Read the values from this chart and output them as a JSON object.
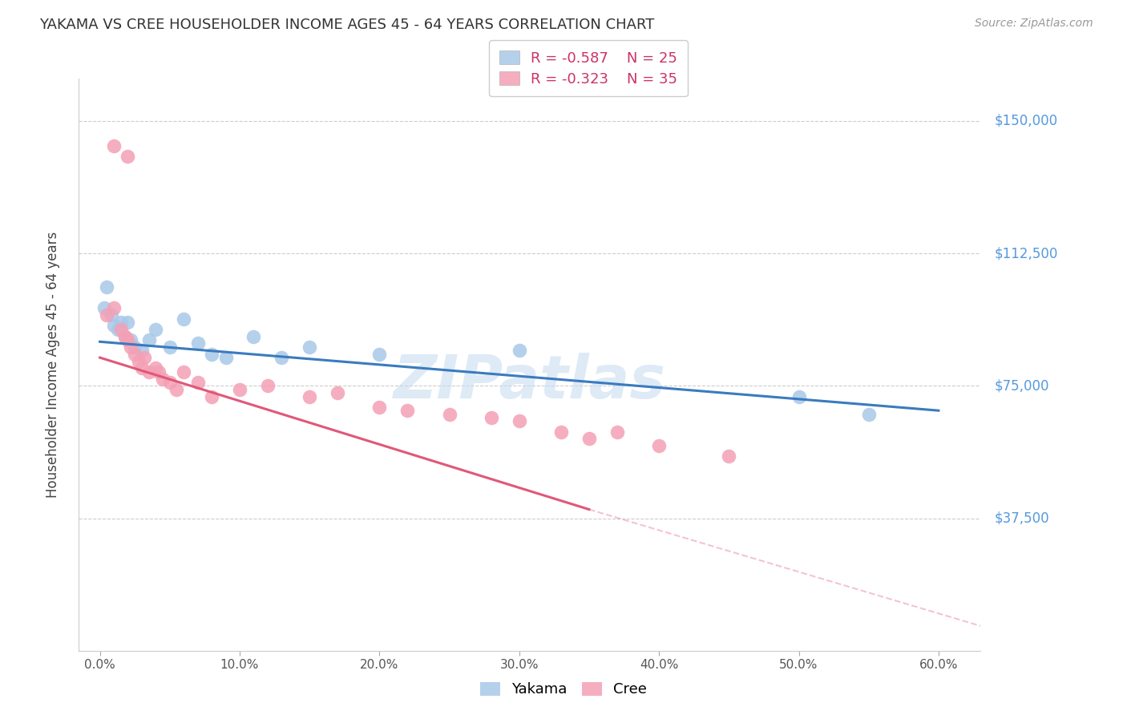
{
  "title": "YAKAMA VS CREE HOUSEHOLDER INCOME AGES 45 - 64 YEARS CORRELATION CHART",
  "source": "Source: ZipAtlas.com",
  "ylabel": "Householder Income Ages 45 - 64 years",
  "xlabel_ticks": [
    "0.0%",
    "10.0%",
    "20.0%",
    "30.0%",
    "40.0%",
    "50.0%",
    "60.0%"
  ],
  "xlabel_vals": [
    0.0,
    10.0,
    20.0,
    30.0,
    40.0,
    50.0,
    60.0
  ],
  "ytick_vals": [
    0,
    37500,
    75000,
    112500,
    150000
  ],
  "ytick_labels": [
    "",
    "$37,500",
    "$75,000",
    "$112,500",
    "$150,000"
  ],
  "xlim": [
    -1.5,
    63
  ],
  "ylim": [
    0,
    162000
  ],
  "yakama_R": -0.587,
  "yakama_N": 25,
  "cree_R": -0.323,
  "cree_N": 35,
  "yakama_color": "#a8c8e8",
  "cree_color": "#f4a0b5",
  "yakama_line_color": "#3a7bbf",
  "cree_line_color": "#e05878",
  "watermark": "ZIPatlas",
  "yakama_x": [
    0.3,
    0.5,
    0.8,
    1.0,
    1.3,
    1.5,
    1.8,
    2.0,
    2.2,
    2.5,
    3.0,
    3.5,
    4.0,
    5.0,
    6.0,
    7.0,
    8.0,
    9.0,
    11.0,
    13.0,
    15.0,
    20.0,
    30.0,
    50.0,
    55.0
  ],
  "yakama_y": [
    97000,
    103000,
    95000,
    92000,
    91000,
    93000,
    89000,
    93000,
    88000,
    86000,
    85000,
    88000,
    91000,
    86000,
    94000,
    87000,
    84000,
    83000,
    89000,
    83000,
    86000,
    84000,
    85000,
    72000,
    67000
  ],
  "cree_x": [
    1.0,
    2.0,
    0.5,
    1.0,
    1.5,
    1.8,
    2.0,
    2.2,
    2.5,
    2.8,
    3.0,
    3.2,
    3.5,
    4.0,
    4.2,
    4.5,
    5.0,
    5.5,
    6.0,
    7.0,
    8.0,
    10.0,
    12.0,
    15.0,
    17.0,
    20.0,
    22.0,
    25.0,
    28.0,
    30.0,
    33.0,
    35.0,
    37.0,
    40.0,
    45.0
  ],
  "cree_y": [
    143000,
    140000,
    95000,
    97000,
    91000,
    89000,
    88000,
    86000,
    84000,
    82000,
    80000,
    83000,
    79000,
    80000,
    79000,
    77000,
    76000,
    74000,
    79000,
    76000,
    72000,
    74000,
    75000,
    72000,
    73000,
    69000,
    68000,
    67000,
    66000,
    65000,
    62000,
    60000,
    62000,
    58000,
    55000
  ],
  "yakama_line_x0": 0.0,
  "yakama_line_y0": 87500,
  "yakama_line_x1": 60.0,
  "yakama_line_y1": 68000,
  "cree_line_x0": 0.0,
  "cree_line_y0": 83000,
  "cree_line_x1": 35.0,
  "cree_line_y1": 40000,
  "cree_dashed_x1": 63.0,
  "cree_dashed_y1": 7000
}
